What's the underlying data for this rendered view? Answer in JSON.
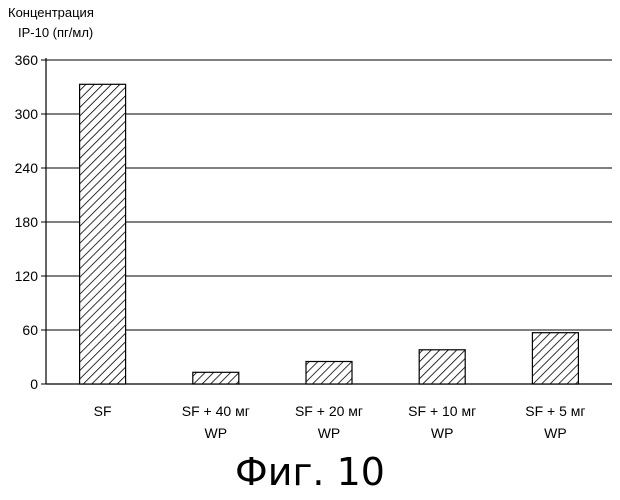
{
  "chart_data": {
    "type": "bar",
    "ylabel_lines": [
      "Концентрация",
      "IP-10 (пг/мл)"
    ],
    "categories": [
      [
        "SF"
      ],
      [
        "SF + 40 мг",
        "WP"
      ],
      [
        "SF + 20 мг",
        "WP"
      ],
      [
        "SF + 10 мг",
        "WP"
      ],
      [
        "SF + 5 мг",
        "WP"
      ]
    ],
    "values": [
      333,
      13,
      25,
      38,
      57
    ],
    "yticks": [
      0,
      60,
      120,
      180,
      240,
      300,
      360
    ],
    "ylim": [
      0,
      360
    ],
    "grid": true,
    "bar_fill": "diagonal-hatch",
    "colors": {
      "bar_stroke": "#000000",
      "grid": "#000000",
      "axis": "#000000"
    }
  },
  "caption": "Фиг. 10"
}
